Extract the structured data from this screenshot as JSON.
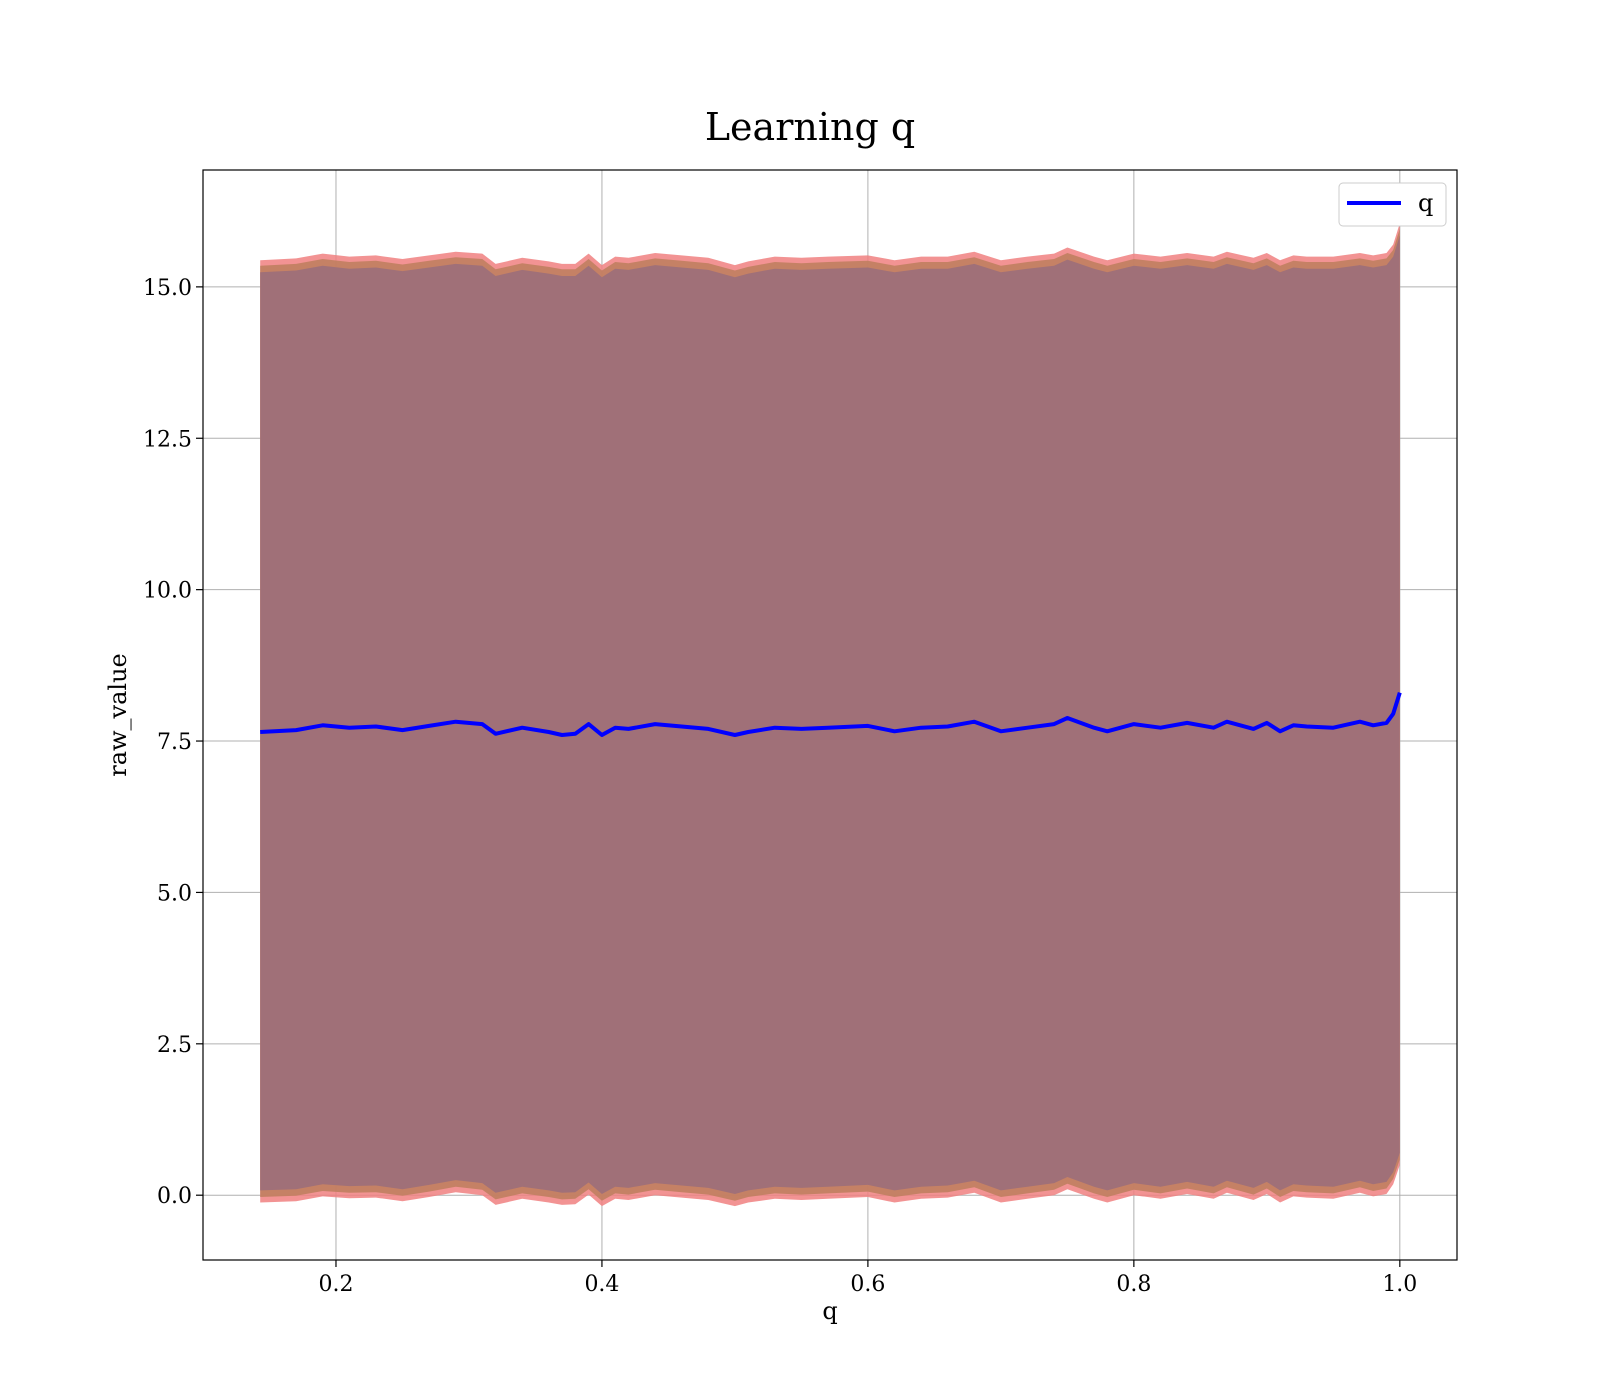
{
  "chart_data": {
    "type": "line",
    "title": "Learning q",
    "xlabel": "q",
    "ylabel": "raw_value",
    "xlim": [
      0.1,
      1.043
    ],
    "ylim": [
      -1.07,
      16.93
    ],
    "xticks": [
      0.2,
      0.4,
      0.6,
      0.8,
      1.0
    ],
    "xtick_labels": [
      "0.2",
      "0.4",
      "0.6",
      "0.8",
      "1.0"
    ],
    "yticks": [
      0.0,
      2.5,
      5.0,
      7.5,
      10.0,
      12.5,
      15.0
    ],
    "ytick_labels": [
      "0.0",
      "2.5",
      "5.0",
      "7.5",
      "10.0",
      "12.5",
      "15.0"
    ],
    "grid": true,
    "legend": {
      "position": "top-right",
      "entries": [
        "q"
      ]
    },
    "series": [
      {
        "name": "q",
        "color": "#0000ff",
        "x": [
          0.143,
          0.17,
          0.19,
          0.21,
          0.23,
          0.25,
          0.27,
          0.29,
          0.31,
          0.32,
          0.34,
          0.36,
          0.37,
          0.38,
          0.39,
          0.4,
          0.41,
          0.42,
          0.44,
          0.46,
          0.48,
          0.5,
          0.51,
          0.53,
          0.55,
          0.57,
          0.6,
          0.62,
          0.64,
          0.66,
          0.68,
          0.7,
          0.72,
          0.74,
          0.75,
          0.77,
          0.78,
          0.8,
          0.82,
          0.84,
          0.86,
          0.87,
          0.89,
          0.9,
          0.91,
          0.92,
          0.93,
          0.95,
          0.97,
          0.98,
          0.99,
          0.995,
          1.0
        ],
        "values": [
          7.65,
          7.68,
          7.76,
          7.72,
          7.74,
          7.68,
          7.75,
          7.82,
          7.78,
          7.62,
          7.72,
          7.65,
          7.6,
          7.62,
          7.78,
          7.6,
          7.72,
          7.7,
          7.78,
          7.74,
          7.7,
          7.6,
          7.65,
          7.72,
          7.7,
          7.72,
          7.75,
          7.66,
          7.72,
          7.74,
          7.82,
          7.66,
          7.72,
          7.78,
          7.88,
          7.72,
          7.66,
          7.78,
          7.72,
          7.8,
          7.72,
          7.82,
          7.7,
          7.8,
          7.66,
          7.76,
          7.74,
          7.72,
          7.82,
          7.76,
          7.8,
          7.95,
          8.3
        ]
      }
    ],
    "band": {
      "outer_upper_color": "#f08080",
      "inner_upper_color": "#c08060",
      "fill_color": "#a07078",
      "upper": [
        15.44,
        15.47,
        15.55,
        15.5,
        15.52,
        15.46,
        15.52,
        15.58,
        15.55,
        15.38,
        15.48,
        15.42,
        15.38,
        15.38,
        15.55,
        15.36,
        15.5,
        15.48,
        15.56,
        15.52,
        15.48,
        15.36,
        15.42,
        15.5,
        15.48,
        15.5,
        15.52,
        15.44,
        15.5,
        15.5,
        15.58,
        15.44,
        15.5,
        15.55,
        15.65,
        15.5,
        15.44,
        15.55,
        15.5,
        15.56,
        15.5,
        15.58,
        15.48,
        15.56,
        15.44,
        15.52,
        15.5,
        15.5,
        15.56,
        15.52,
        15.56,
        15.7,
        16.05
      ],
      "lower": [
        -0.12,
        -0.1,
        -0.02,
        -0.05,
        -0.04,
        -0.1,
        -0.03,
        0.05,
        0.0,
        -0.16,
        -0.06,
        -0.12,
        -0.16,
        -0.15,
        0.01,
        -0.18,
        -0.06,
        -0.08,
        0.0,
        -0.04,
        -0.08,
        -0.18,
        -0.12,
        -0.06,
        -0.08,
        -0.06,
        -0.03,
        -0.12,
        -0.06,
        -0.04,
        0.04,
        -0.12,
        -0.06,
        0.0,
        0.1,
        -0.06,
        -0.12,
        0.0,
        -0.06,
        0.02,
        -0.06,
        0.04,
        -0.08,
        0.02,
        -0.12,
        -0.02,
        -0.04,
        -0.06,
        0.04,
        -0.02,
        0.02,
        0.18,
        0.5
      ]
    }
  }
}
